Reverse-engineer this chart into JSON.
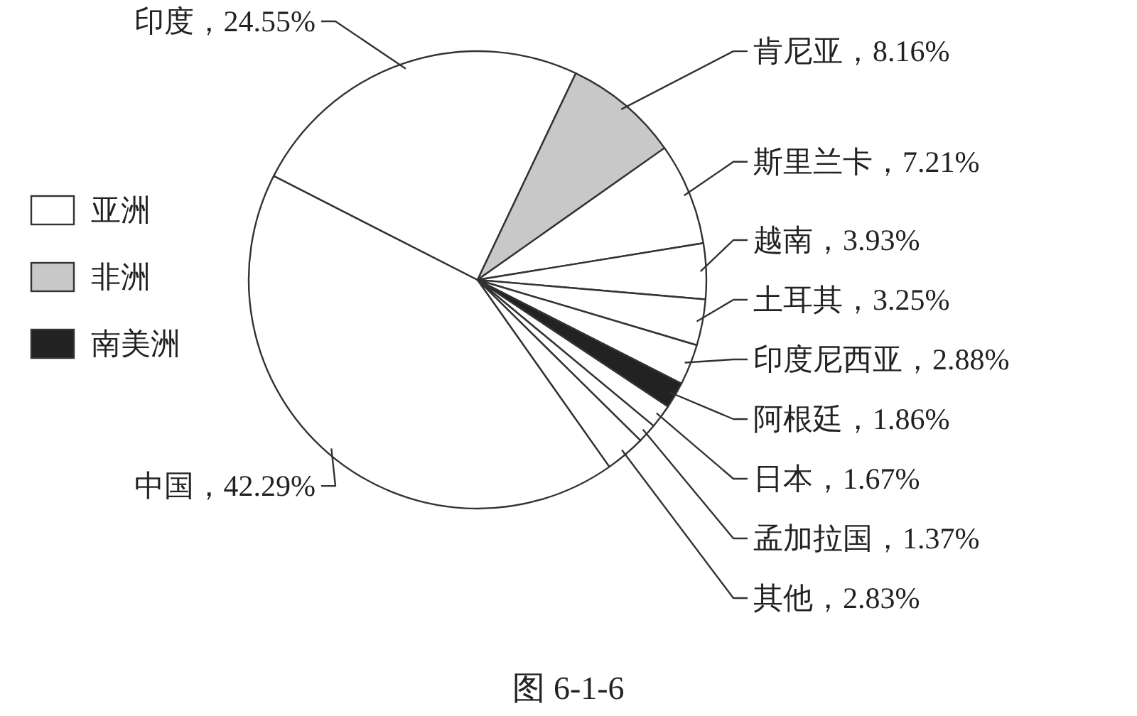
{
  "chart_data": {
    "type": "pie",
    "categories": [
      "中国",
      "印度",
      "肯尼亚",
      "斯里兰卡",
      "越南",
      "土耳其",
      "印度尼西亚",
      "阿根廷",
      "日本",
      "孟加拉国",
      "其他"
    ],
    "values": [
      42.29,
      24.55,
      8.16,
      7.21,
      3.93,
      3.25,
      2.88,
      1.86,
      1.67,
      1.37,
      2.83
    ],
    "colors": [
      "#ffffff",
      "#ffffff",
      "#c8c8c8",
      "#ffffff",
      "#ffffff",
      "#ffffff",
      "#ffffff",
      "#222222",
      "#ffffff",
      "#ffffff",
      "#ffffff"
    ],
    "value_labels": [
      "42.29%",
      "24.55%",
      "8.16%",
      "7.21%",
      "3.93%",
      "3.25%",
      "2.88%",
      "1.86%",
      "1.67%",
      "1.37%",
      "2.83%"
    ],
    "annotations": [
      "亚洲",
      "非洲",
      "南美洲",
      "图 6-1-6"
    ]
  }
}
